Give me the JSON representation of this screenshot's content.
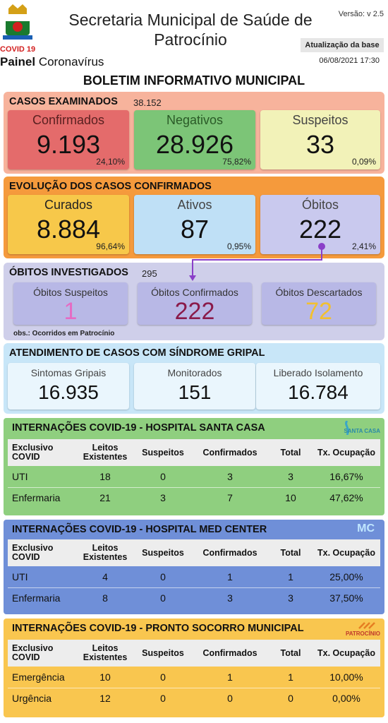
{
  "header": {
    "title": "Secretaria Municipal de Saúde de Patrocínio",
    "version": "Versão: v 2.5",
    "covid_tag": "COVID 19",
    "painel_bold": "Painel",
    "painel_rest": " Coronavírus",
    "update_label": "Atualização da base",
    "update_date": "06/08/2021 17:30"
  },
  "bulletin_title": "BOLETIM INFORMATIVO MUNICIPAL",
  "casos": {
    "title": "CASOS EXAMINADOS",
    "total": "38.152",
    "cards": [
      {
        "label": "Confirmados",
        "value": "9.193",
        "pct": "24,10%",
        "bg": "#e46b6b",
        "label_color": "#5a2020"
      },
      {
        "label": "Negativos",
        "value": "28.926",
        "pct": "75,82%",
        "bg": "#7cc577",
        "label_color": "#2a5a27"
      },
      {
        "label": "Suspeitos",
        "value": "33",
        "pct": "0,09%",
        "bg": "#f2f2b8",
        "label_color": "#444444"
      }
    ]
  },
  "evolucao": {
    "title": "EVOLUÇÃO DOS CASOS CONFIRMADOS",
    "cards": [
      {
        "label": "Curados",
        "value": "8.884",
        "pct": "96,64%",
        "bg": "#f7c84a",
        "label_color": "#222222"
      },
      {
        "label": "Ativos",
        "value": "87",
        "pct": "0,95%",
        "bg": "#bfe0f6",
        "label_color": "#444444"
      },
      {
        "label": "Óbitos",
        "value": "222",
        "pct": "2,41%",
        "bg": "#c9c9ee",
        "label_color": "#444444"
      }
    ]
  },
  "obitos": {
    "title": "ÓBITOS INVESTIGADOS",
    "total": "295",
    "cards": [
      {
        "label": "Óbitos Suspeitos",
        "value": "1",
        "value_color": "#e56bc4"
      },
      {
        "label": "Óbitos Confirmados",
        "value": "222",
        "value_color": "#8a1a4a"
      },
      {
        "label": "Óbitos Descartados",
        "value": "72",
        "value_color": "#f2c030"
      }
    ],
    "obs": "obs.: Ocorridos em Patrocínio"
  },
  "sindrome": {
    "title": "ATENDIMENTO DE CASOS COM SÍNDROME GRIPAL",
    "cards": [
      {
        "label": "Sintomas Gripais",
        "value": "16.935"
      },
      {
        "label": "Monitorados",
        "value": "151"
      },
      {
        "label": "Liberado Isolamento",
        "value": "16.784"
      }
    ]
  },
  "hospitals": [
    {
      "title": "INTERNAÇÕES COVID-19 - HOSPITAL SANTA CASA",
      "logo_text": "SANTA CASA",
      "bg": "#8fcf7f",
      "header_bg": "#ededed",
      "headers": [
        "Exclusivo COVID",
        "Leitos Existentes",
        "Suspeitos",
        "Confirmados",
        "Total",
        "Tx. Ocupação"
      ],
      "rows": [
        [
          "UTI",
          "18",
          "0",
          "3",
          "3",
          "16,67%"
        ],
        [
          "Enfermaria",
          "21",
          "3",
          "7",
          "10",
          "47,62%"
        ]
      ]
    },
    {
      "title": "INTERNAÇÕES COVID-19 - HOSPITAL MED CENTER",
      "logo_text": "MC",
      "bg": "#6f8fd8",
      "header_bg": "#ededed",
      "headers": [
        "Exclusivo COVID",
        "Leitos Existentes",
        "Suspeitos",
        "Confirmados",
        "Total",
        "Tx. Ocupação"
      ],
      "rows": [
        [
          "UTI",
          "4",
          "0",
          "1",
          "1",
          "25,00%"
        ],
        [
          "Enfermaria",
          "8",
          "0",
          "3",
          "3",
          "37,50%"
        ]
      ]
    },
    {
      "title": "INTERNAÇÕES COVID-19 - PRONTO SOCORRO MUNICIPAL",
      "logo_text": "PATROCÍNIO",
      "bg": "#f9c64f",
      "header_bg": "#ededed",
      "headers": [
        "Exclusivo COVID",
        "Leitos Existentes",
        "Suspeitos",
        "Confirmados",
        "Total",
        "Tx. Ocupação"
      ],
      "rows": [
        [
          "Emergência",
          "10",
          "0",
          "1",
          "1",
          "10,00%"
        ],
        [
          "Urgência",
          "12",
          "0",
          "0",
          "0",
          "0,00%"
        ]
      ]
    }
  ]
}
